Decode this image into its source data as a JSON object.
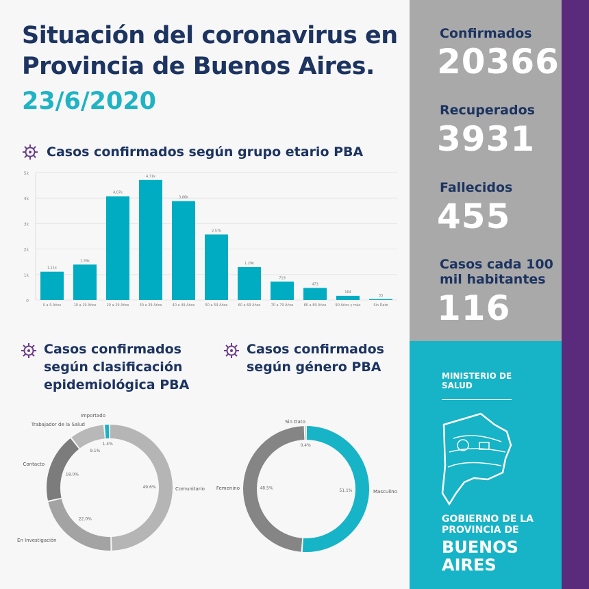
{
  "header": {
    "title_line1": "Situación del coronavirus en",
    "title_line2": "Provincia de Buenos Aires.",
    "date": "23/6/2020"
  },
  "sections": {
    "age": "Casos confirmados según grupo etario PBA",
    "class_l1": "Casos confirmados",
    "class_l2": "según clasificación",
    "class_l3": "epidemiológica PBA",
    "gender_l1": "Casos confirmados",
    "gender_l2": "según género PBA"
  },
  "stats": [
    {
      "label": "Confirmados",
      "value": "20366"
    },
    {
      "label": "Recuperados",
      "value": "3931"
    },
    {
      "label": "Fallecidos",
      "value": "455"
    },
    {
      "label": "Casos cada 100 mil habitantes",
      "label_l1": "Casos cada 100",
      "label_l2": "mil habitantes",
      "value": "116"
    }
  ],
  "branding": {
    "ministry_l1": "MINISTERIO DE",
    "ministry_l2": "SALUD",
    "gov_l1": "GOBIERNO DE LA",
    "gov_l2": "PROVINCIA DE",
    "gov_l3": "BUENOS",
    "gov_l4": "AIRES"
  },
  "colors": {
    "navy": "#1d3461",
    "teal": "#17b3c6",
    "bar": "#00acc1",
    "purple": "#5a2a7c",
    "gray_panel": "#a9a9a9"
  },
  "chart_data": [
    {
      "type": "bar",
      "title": "Casos confirmados según grupo etario PBA",
      "categories": [
        "0 a 9 Años",
        "10 a 19 Años",
        "20 a 29 Años",
        "30 a 39 Años",
        "40 a 49 Años",
        "50 a 59 Años",
        "60 a 69 Años",
        "70 a 79 Años",
        "80 a 89 Años",
        "90 Años y más",
        "Sin Dato"
      ],
      "values": [
        1110,
        1390,
        4070,
        4710,
        3880,
        2570,
        1290,
        719,
        473,
        164,
        33
      ],
      "data_labels": [
        "1,11k",
        "1,39k",
        "4,07k",
        "4,71k",
        "3,88k",
        "2,57k",
        "1,29k",
        "719",
        "473",
        "164",
        "33"
      ],
      "yticks": [
        "0",
        "1k",
        "2k",
        "3k",
        "4k",
        "5k"
      ],
      "ylim": [
        0,
        5000
      ],
      "grid": true
    },
    {
      "type": "pie",
      "title": "Casos confirmados según clasificación epidemiológica PBA",
      "slices": [
        {
          "label": "Comunitario",
          "value": 49.6,
          "text": "49.6%",
          "color": "#b5b5b5"
        },
        {
          "label": "En Investigación",
          "value": 22.0,
          "text": "22.0%",
          "color": "#a3a3a3"
        },
        {
          "label": "Contacto",
          "value": 18.0,
          "text": "18.0%",
          "color": "#7c7c7c"
        },
        {
          "label": "Trabajador de la Salud",
          "value": 9.1,
          "text": "9.1%",
          "color": "#b8b8b8"
        },
        {
          "label": "Importado",
          "value": 1.4,
          "text": "1.4%",
          "color": "#17b3c6"
        }
      ]
    },
    {
      "type": "pie",
      "title": "Casos confirmados según género PBA",
      "slices": [
        {
          "label": "Masculino",
          "value": 51.1,
          "text": "51.1%",
          "color": "#17b3c6"
        },
        {
          "label": "Femenino",
          "value": 48.5,
          "text": "48.5%",
          "color": "#858585"
        },
        {
          "label": "Sin Dato",
          "value": 0.4,
          "text": "0.4%",
          "color": "#444444"
        }
      ]
    }
  ]
}
